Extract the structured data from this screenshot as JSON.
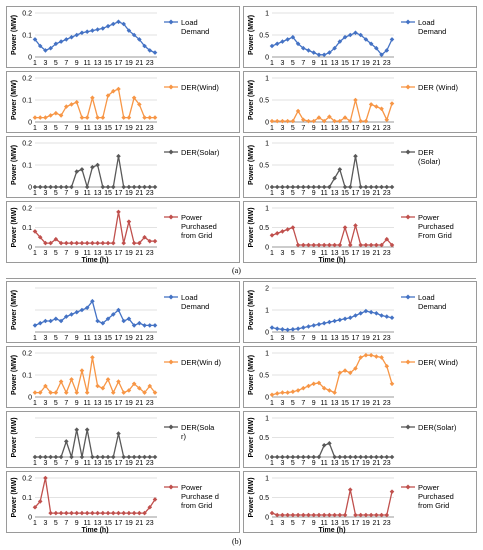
{
  "captions": {
    "a": "(a)",
    "b": "(b)"
  },
  "colors": {
    "load": "#4472C4",
    "wind": "#F79646",
    "solar": "#595959",
    "grid": "#C0504D"
  },
  "chart_data": [
    {
      "id": "a-load-left",
      "type": "line",
      "ylabel": "Power (MW)",
      "xlabel": "",
      "ylim": [
        0,
        0.2
      ],
      "yticks": [
        "0",
        "0.1",
        "0.2"
      ],
      "xticks": [
        "1",
        "3",
        "5",
        "7",
        "9",
        "11",
        "13",
        "15",
        "17",
        "19",
        "21",
        "23"
      ],
      "legend": "Load Demand",
      "color": "load",
      "values": [
        0.08,
        0.05,
        0.03,
        0.04,
        0.06,
        0.07,
        0.08,
        0.09,
        0.1,
        0.11,
        0.115,
        0.12,
        0.125,
        0.13,
        0.14,
        0.15,
        0.16,
        0.15,
        0.12,
        0.1,
        0.08,
        0.05,
        0.03,
        0.02
      ]
    },
    {
      "id": "a-load-right",
      "type": "line",
      "ylabel": "Power (MW)",
      "xlabel": "",
      "ylim": [
        0,
        1
      ],
      "yticks": [
        "0",
        "0.5",
        "1"
      ],
      "xticks": [
        "1",
        "3",
        "5",
        "7",
        "9",
        "11",
        "13",
        "15",
        "17",
        "19",
        "21",
        "23"
      ],
      "legend": "Load Demand",
      "color": "load",
      "values": [
        0.25,
        0.3,
        0.35,
        0.4,
        0.45,
        0.3,
        0.2,
        0.15,
        0.1,
        0.05,
        0.05,
        0.1,
        0.2,
        0.35,
        0.45,
        0.5,
        0.55,
        0.5,
        0.4,
        0.3,
        0.2,
        0.05,
        0.15,
        0.4
      ]
    },
    {
      "id": "a-wind-left",
      "type": "line",
      "ylabel": "Power (MW)",
      "xlabel": "",
      "ylim": [
        0,
        0.2
      ],
      "yticks": [
        "0",
        "0.1",
        "0.2"
      ],
      "xticks": [
        "1",
        "3",
        "5",
        "7",
        "9",
        "11",
        "13",
        "15",
        "17",
        "19",
        "21",
        "23"
      ],
      "legend": "DER(Wind)",
      "color": "wind",
      "values": [
        0.02,
        0.02,
        0.02,
        0.03,
        0.04,
        0.03,
        0.07,
        0.08,
        0.09,
        0.02,
        0.02,
        0.11,
        0.02,
        0.02,
        0.12,
        0.14,
        0.15,
        0.02,
        0.02,
        0.11,
        0.08,
        0.02,
        0.02,
        0.02
      ]
    },
    {
      "id": "a-wind-right",
      "type": "line",
      "ylabel": "Power (MW)",
      "xlabel": "",
      "ylim": [
        0,
        1
      ],
      "yticks": [
        "0",
        "0.5",
        "1"
      ],
      "xticks": [
        "1",
        "3",
        "5",
        "7",
        "9",
        "11",
        "13",
        "15",
        "17",
        "19",
        "21",
        "23"
      ],
      "legend": "DER (Wind)",
      "color": "wind",
      "values": [
        0.02,
        0.02,
        0.02,
        0.02,
        0.02,
        0.25,
        0.05,
        0.02,
        0.02,
        0.1,
        0.02,
        0.12,
        0.02,
        0.02,
        0.1,
        0.02,
        0.5,
        0.02,
        0.02,
        0.4,
        0.35,
        0.3,
        0.05,
        0.42
      ]
    },
    {
      "id": "a-solar-left",
      "type": "line",
      "ylabel": "Power (MW)",
      "xlabel": "",
      "ylim": [
        0,
        0.2
      ],
      "yticks": [
        "0",
        "0.1",
        "0.2"
      ],
      "xticks": [
        "1",
        "3",
        "5",
        "7",
        "9",
        "11",
        "13",
        "15",
        "17",
        "19",
        "21",
        "23"
      ],
      "legend": "DER(Solar)",
      "color": "solar",
      "values": [
        0,
        0,
        0,
        0,
        0,
        0,
        0,
        0,
        0.07,
        0.08,
        0,
        0.09,
        0.1,
        0,
        0,
        0,
        0.14,
        0,
        0,
        0,
        0,
        0,
        0,
        0
      ]
    },
    {
      "id": "a-solar-right",
      "type": "line",
      "ylabel": "Power (MW)",
      "xlabel": "",
      "ylim": [
        0,
        1
      ],
      "yticks": [
        "0",
        "0.5",
        "1"
      ],
      "xticks": [
        "1",
        "3",
        "5",
        "7",
        "9",
        "11",
        "13",
        "15",
        "17",
        "19",
        "21",
        "23"
      ],
      "legend": "DER (Solar)",
      "color": "solar",
      "values": [
        0,
        0,
        0,
        0,
        0,
        0,
        0,
        0,
        0,
        0,
        0,
        0,
        0.2,
        0.4,
        0,
        0,
        0.7,
        0,
        0,
        0,
        0,
        0,
        0,
        0
      ]
    },
    {
      "id": "a-grid-left",
      "type": "line",
      "ylabel": "Power (MW)",
      "xlabel": "Time (h)",
      "ylim": [
        0,
        0.2
      ],
      "yticks": [
        "0",
        "0.1",
        "0.2"
      ],
      "xticks": [
        "1",
        "3",
        "5",
        "7",
        "9",
        "11",
        "13",
        "15",
        "17",
        "19",
        "21",
        "23"
      ],
      "legend": "Power Purchased from Grid",
      "color": "grid",
      "values": [
        0.08,
        0.05,
        0.02,
        0.02,
        0.04,
        0.02,
        0.02,
        0.02,
        0.02,
        0.02,
        0.02,
        0.02,
        0.02,
        0.02,
        0.02,
        0.02,
        0.18,
        0.02,
        0.13,
        0.02,
        0.02,
        0.05,
        0.03,
        0.03
      ]
    },
    {
      "id": "a-grid-right",
      "type": "line",
      "ylabel": "Power (MW)",
      "xlabel": "Time (h)",
      "ylim": [
        0,
        1
      ],
      "yticks": [
        "0",
        "0.5",
        "1"
      ],
      "xticks": [
        "1",
        "3",
        "5",
        "7",
        "9",
        "11",
        "13",
        "15",
        "17",
        "19",
        "21",
        "23"
      ],
      "legend": "Power Purchased From Grid",
      "color": "grid",
      "values": [
        0.3,
        0.35,
        0.4,
        0.45,
        0.5,
        0.05,
        0.05,
        0.05,
        0.05,
        0.05,
        0.05,
        0.05,
        0.05,
        0.05,
        0.5,
        0.05,
        0.55,
        0.05,
        0.05,
        0.05,
        0.05,
        0.05,
        0.2,
        0.05
      ]
    },
    {
      "id": "b-load-left",
      "type": "line",
      "ylabel": "Power (MW)",
      "xlabel": "",
      "ylim": [
        0,
        0.2
      ],
      "yticks": [
        "",
        "",
        ""
      ],
      "xticks": [
        "1",
        "3",
        "5",
        "7",
        "9",
        "11",
        "13",
        "15",
        "17",
        "19",
        "21",
        "23"
      ],
      "legend": "Load Demand",
      "color": "load",
      "values": [
        0.03,
        0.04,
        0.05,
        0.05,
        0.06,
        0.05,
        0.07,
        0.08,
        0.09,
        0.1,
        0.11,
        0.14,
        0.05,
        0.04,
        0.06,
        0.08,
        0.1,
        0.05,
        0.06,
        0.03,
        0.04,
        0.03,
        0.03,
        0.03
      ]
    },
    {
      "id": "b-load-right",
      "type": "line",
      "ylabel": "Power (MW)",
      "xlabel": "",
      "ylim": [
        0,
        2
      ],
      "yticks": [
        "0",
        "1",
        "2"
      ],
      "xticks": [
        "1",
        "3",
        "5",
        "7",
        "9",
        "11",
        "13",
        "15",
        "17",
        "19",
        "21",
        "23"
      ],
      "legend": "Load Demand",
      "color": "load",
      "values": [
        0.2,
        0.15,
        0.12,
        0.1,
        0.12,
        0.15,
        0.2,
        0.25,
        0.3,
        0.35,
        0.4,
        0.45,
        0.5,
        0.55,
        0.6,
        0.65,
        0.75,
        0.85,
        0.95,
        0.9,
        0.85,
        0.75,
        0.7,
        0.65
      ]
    },
    {
      "id": "b-wind-left",
      "type": "line",
      "ylabel": "Power (MW)",
      "xlabel": "",
      "ylim": [
        0,
        0.2
      ],
      "yticks": [
        "0",
        "0.1",
        "0.2"
      ],
      "xticks": [
        "1",
        "3",
        "5",
        "7",
        "9",
        "11",
        "13",
        "15",
        "17",
        "19",
        "21",
        "23"
      ],
      "legend": "DER(Win d)",
      "color": "wind",
      "values": [
        0.02,
        0.02,
        0.05,
        0.02,
        0.02,
        0.07,
        0.02,
        0.08,
        0.02,
        0.12,
        0.02,
        0.18,
        0.05,
        0.04,
        0.08,
        0.02,
        0.07,
        0.02,
        0.03,
        0.06,
        0.04,
        0.02,
        0.05,
        0.02
      ]
    },
    {
      "id": "b-wind-right",
      "type": "line",
      "ylabel": "Power (MW)",
      "xlabel": "",
      "ylim": [
        0,
        1
      ],
      "yticks": [
        "0",
        "0.5",
        "1"
      ],
      "xticks": [
        "1",
        "3",
        "5",
        "7",
        "9",
        "11",
        "13",
        "15",
        "17",
        "19",
        "21",
        "23"
      ],
      "legend": "DER( Wind)",
      "color": "wind",
      "values": [
        0.05,
        0.08,
        0.1,
        0.1,
        0.12,
        0.15,
        0.2,
        0.25,
        0.3,
        0.32,
        0.2,
        0.15,
        0.1,
        0.55,
        0.6,
        0.55,
        0.65,
        0.9,
        0.95,
        0.95,
        0.92,
        0.9,
        0.7,
        0.3
      ]
    },
    {
      "id": "b-solar-left",
      "type": "line",
      "ylabel": "Power (MW)",
      "xlabel": "",
      "ylim": [
        0,
        0.2
      ],
      "yticks": [
        "",
        "",
        ""
      ],
      "xticks": [
        "1",
        "3",
        "5",
        "7",
        "9",
        "11",
        "13",
        "15",
        "17",
        "19",
        "21",
        "23"
      ],
      "legend": "DER(Sola r)",
      "color": "solar",
      "values": [
        0,
        0,
        0,
        0,
        0,
        0,
        0.08,
        0,
        0.14,
        0,
        0.14,
        0,
        0,
        0,
        0,
        0,
        0.12,
        0,
        0,
        0,
        0,
        0,
        0,
        0
      ]
    },
    {
      "id": "b-solar-right",
      "type": "line",
      "ylabel": "Power (MW)",
      "xlabel": "",
      "ylim": [
        0,
        1
      ],
      "yticks": [
        "0",
        "0.5",
        "1"
      ],
      "xticks": [
        "1",
        "3",
        "5",
        "7",
        "9",
        "11",
        "13",
        "15",
        "17",
        "19",
        "21",
        "23"
      ],
      "legend": "DER(Solar)",
      "color": "solar",
      "values": [
        0,
        0,
        0,
        0,
        0,
        0,
        0,
        0,
        0,
        0,
        0.3,
        0.35,
        0,
        0,
        0,
        0,
        0,
        0,
        0,
        0,
        0,
        0,
        0,
        0
      ]
    },
    {
      "id": "b-grid-left",
      "type": "line",
      "ylabel": "Power (MW)",
      "xlabel": "Time (h)",
      "ylim": [
        0,
        0.2
      ],
      "yticks": [
        "0",
        "0.1",
        "0.2"
      ],
      "xticks": [
        "1",
        "3",
        "5",
        "7",
        "9",
        "11",
        "13",
        "15",
        "17",
        "19",
        "21",
        "23"
      ],
      "legend": "Power Purchase d from Grid",
      "color": "grid",
      "values": [
        0.05,
        0.08,
        0.2,
        0.02,
        0.02,
        0.02,
        0.02,
        0.02,
        0.02,
        0.02,
        0.02,
        0.02,
        0.02,
        0.02,
        0.02,
        0.02,
        0.02,
        0.02,
        0.02,
        0.02,
        0.02,
        0.02,
        0.05,
        0.09
      ]
    },
    {
      "id": "b-grid-right",
      "type": "line",
      "ylabel": "Power (MW)",
      "xlabel": "Time (h)",
      "ylim": [
        0,
        1
      ],
      "yticks": [
        "0",
        "0.5",
        "1"
      ],
      "xticks": [
        "1",
        "3",
        "5",
        "7",
        "9",
        "11",
        "13",
        "15",
        "17",
        "19",
        "21",
        "23"
      ],
      "legend": "Power Purchased from Grid",
      "color": "grid",
      "values": [
        0.1,
        0.05,
        0.05,
        0.05,
        0.05,
        0.05,
        0.05,
        0.05,
        0.05,
        0.05,
        0.05,
        0.05,
        0.05,
        0.05,
        0.05,
        0.7,
        0.05,
        0.05,
        0.05,
        0.05,
        0.05,
        0.05,
        0.05,
        0.65
      ]
    }
  ]
}
